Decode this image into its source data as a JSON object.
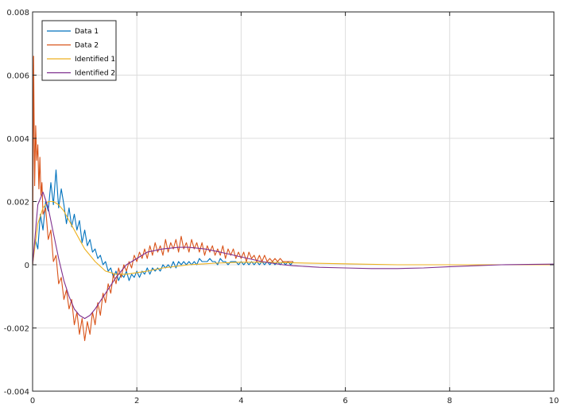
{
  "chart_data": {
    "type": "line",
    "title": "",
    "xlabel": "",
    "ylabel": "",
    "xlim": [
      0,
      10
    ],
    "ylim": [
      -0.004,
      0.008
    ],
    "xticks": [
      0,
      2,
      4,
      6,
      8,
      10
    ],
    "xtick_labels": [
      "0",
      "2",
      "4",
      "6",
      "8",
      "10"
    ],
    "yticks": [
      -0.004,
      -0.002,
      0,
      0.002,
      0.004,
      0.006,
      0.008
    ],
    "ytick_labels": [
      "-0.004",
      "-0.002",
      "0",
      "0.002",
      "0.004",
      "0.006",
      "0.008"
    ],
    "grid": true,
    "legend_position": "top-left",
    "series": [
      {
        "name": "Data 1",
        "color": "#0072BD",
        "x": [
          0,
          0.05,
          0.1,
          0.15,
          0.2,
          0.25,
          0.3,
          0.35,
          0.4,
          0.45,
          0.5,
          0.55,
          0.6,
          0.65,
          0.7,
          0.75,
          0.8,
          0.85,
          0.9,
          0.95,
          1.0,
          1.05,
          1.1,
          1.15,
          1.2,
          1.25,
          1.3,
          1.35,
          1.4,
          1.45,
          1.5,
          1.55,
          1.6,
          1.65,
          1.7,
          1.75,
          1.8,
          1.85,
          1.9,
          1.95,
          2.0,
          2.05,
          2.1,
          2.15,
          2.2,
          2.25,
          2.3,
          2.35,
          2.4,
          2.45,
          2.5,
          2.55,
          2.6,
          2.65,
          2.7,
          2.75,
          2.8,
          2.85,
          2.9,
          2.95,
          3.0,
          3.05,
          3.1,
          3.15,
          3.2,
          3.25,
          3.3,
          3.35,
          3.4,
          3.45,
          3.5,
          3.55,
          3.6,
          3.65,
          3.7,
          3.75,
          3.8,
          3.85,
          3.9,
          3.95,
          4.0,
          4.05,
          4.1,
          4.15,
          4.2,
          4.25,
          4.3,
          4.35,
          4.4,
          4.45,
          4.5,
          4.55,
          4.6,
          4.65,
          4.7,
          4.75,
          4.8,
          4.85,
          4.9,
          4.95,
          5.0
        ],
        "y": [
          0.0,
          0.0008,
          0.0005,
          0.0016,
          0.0011,
          0.002,
          0.0017,
          0.0026,
          0.0019,
          0.003,
          0.0018,
          0.0024,
          0.0019,
          0.0013,
          0.0018,
          0.0012,
          0.0016,
          0.0011,
          0.0014,
          0.0007,
          0.0011,
          0.0006,
          0.0008,
          0.0004,
          0.0005,
          0.0002,
          0.0003,
          0.0,
          0.0001,
          -0.0002,
          -0.0001,
          -0.0004,
          -0.0002,
          -0.0005,
          -0.0003,
          -0.0004,
          -0.0002,
          -0.0005,
          -0.0003,
          -0.0004,
          -0.0002,
          -0.0004,
          -0.0002,
          -0.0003,
          -0.0001,
          -0.0003,
          -0.0001,
          -0.0002,
          -0.0001,
          -0.0002,
          0.0,
          -0.0001,
          0.0,
          -0.0001,
          0.0001,
          -0.0001,
          0.0001,
          0.0,
          0.0001,
          0.0,
          0.0001,
          0.0,
          0.0001,
          0.0,
          0.0002,
          0.0001,
          0.0001,
          0.0001,
          0.0002,
          0.0001,
          0.0001,
          0.0,
          0.0002,
          0.0001,
          0.0001,
          0.0,
          0.0001,
          0.0001,
          0.0001,
          0.0,
          0.0001,
          0.0,
          0.0001,
          0.0,
          0.0001,
          0.0,
          0.0001,
          0.0,
          0.0001,
          0.0,
          0.0001,
          0.0,
          0.0001,
          0.0,
          0.0001,
          0.0,
          0.0001,
          0.0,
          0.0001,
          0.0,
          0.0001
        ]
      },
      {
        "name": "Data 2",
        "color": "#D95319",
        "x": [
          0,
          0.02,
          0.04,
          0.06,
          0.08,
          0.1,
          0.12,
          0.14,
          0.16,
          0.18,
          0.2,
          0.25,
          0.3,
          0.35,
          0.4,
          0.45,
          0.5,
          0.55,
          0.6,
          0.65,
          0.7,
          0.75,
          0.8,
          0.85,
          0.9,
          0.95,
          1.0,
          1.05,
          1.1,
          1.15,
          1.2,
          1.25,
          1.3,
          1.35,
          1.4,
          1.45,
          1.5,
          1.55,
          1.6,
          1.65,
          1.7,
          1.75,
          1.8,
          1.85,
          1.9,
          1.95,
          2.0,
          2.05,
          2.1,
          2.15,
          2.2,
          2.25,
          2.3,
          2.35,
          2.4,
          2.45,
          2.5,
          2.55,
          2.6,
          2.65,
          2.7,
          2.75,
          2.8,
          2.85,
          2.9,
          2.95,
          3.0,
          3.05,
          3.1,
          3.15,
          3.2,
          3.25,
          3.3,
          3.35,
          3.4,
          3.45,
          3.5,
          3.55,
          3.6,
          3.65,
          3.7,
          3.75,
          3.8,
          3.85,
          3.9,
          3.95,
          4.0,
          4.05,
          4.1,
          4.15,
          4.2,
          4.25,
          4.3,
          4.35,
          4.4,
          4.45,
          4.5,
          4.55,
          4.6,
          4.65,
          4.7,
          4.75,
          4.8,
          4.85,
          4.9,
          4.95,
          5.0
        ],
        "y": [
          0.0,
          0.0066,
          0.0025,
          0.0044,
          0.0033,
          0.0038,
          0.0024,
          0.0034,
          0.0022,
          0.0026,
          0.0016,
          0.0018,
          0.0008,
          0.0011,
          0.0001,
          0.0003,
          -0.0006,
          -0.0004,
          -0.0011,
          -0.0008,
          -0.0014,
          -0.0011,
          -0.0019,
          -0.0015,
          -0.0022,
          -0.0017,
          -0.0024,
          -0.0018,
          -0.0022,
          -0.0015,
          -0.0019,
          -0.0012,
          -0.0016,
          -0.0009,
          -0.0012,
          -0.0006,
          -0.0009,
          -0.0003,
          -0.0006,
          -0.0001,
          -0.0004,
          0.0,
          -0.0002,
          0.0001,
          -0.0001,
          0.0003,
          0.0001,
          0.0004,
          0.0002,
          0.0005,
          0.0002,
          0.0006,
          0.0003,
          0.0007,
          0.0004,
          0.0006,
          0.0003,
          0.0008,
          0.0004,
          0.0007,
          0.0005,
          0.0008,
          0.0004,
          0.0009,
          0.0005,
          0.0007,
          0.0004,
          0.0008,
          0.0005,
          0.0007,
          0.0004,
          0.0007,
          0.0003,
          0.0006,
          0.0004,
          0.0006,
          0.0003,
          0.0005,
          0.0003,
          0.0006,
          0.0002,
          0.0005,
          0.0003,
          0.0005,
          0.0002,
          0.0004,
          0.0002,
          0.0004,
          0.0001,
          0.0004,
          0.0002,
          0.0003,
          0.0001,
          0.0003,
          0.0001,
          0.0003,
          0.0001,
          0.0002,
          0.0001,
          0.0002,
          0.0001,
          0.0002,
          0.0001,
          0.0001,
          0.0001,
          0.0001,
          0.0001
        ]
      },
      {
        "name": "Identified 1",
        "color": "#EDB120",
        "x": [
          0,
          0.1,
          0.2,
          0.3,
          0.4,
          0.5,
          0.6,
          0.7,
          0.8,
          0.9,
          1.0,
          1.2,
          1.4,
          1.6,
          1.8,
          2.0,
          2.2,
          2.5,
          3.0,
          3.5,
          4.0,
          4.5,
          5.0,
          6.0,
          7.0,
          8.0,
          9.0,
          10.0
        ],
        "y": [
          0.0,
          0.0013,
          0.0018,
          0.002,
          0.002,
          0.0019,
          0.0017,
          0.0014,
          0.0011,
          0.0008,
          0.0005,
          0.0001,
          -0.0002,
          -0.0003,
          -0.0003,
          -0.00025,
          -0.0002,
          -0.0001,
          0.0,
          5e-05,
          8e-05,
          8e-05,
          6e-05,
          3e-05,
          0.0,
          0.0,
          0.0,
          0.0
        ]
      },
      {
        "name": "Identified 2",
        "color": "#7E2F8E",
        "x": [
          0,
          0.1,
          0.2,
          0.3,
          0.4,
          0.5,
          0.6,
          0.7,
          0.8,
          0.9,
          1.0,
          1.1,
          1.2,
          1.4,
          1.6,
          1.8,
          2.0,
          2.2,
          2.5,
          2.8,
          3.0,
          3.3,
          3.6,
          4.0,
          4.4,
          4.8,
          5.0,
          5.5,
          6.0,
          6.5,
          7.0,
          7.5,
          8.0,
          8.5,
          9.0,
          9.5,
          10.0
        ],
        "y": [
          0.0,
          0.0019,
          0.0023,
          0.0018,
          0.001,
          0.0002,
          -0.0005,
          -0.001,
          -0.0014,
          -0.0016,
          -0.0017,
          -0.0016,
          -0.0014,
          -0.0009,
          -0.0004,
          0.0,
          0.0002,
          0.0004,
          0.0005,
          0.00055,
          0.00055,
          0.0005,
          0.0004,
          0.00025,
          0.0001,
          0.0,
          -3e-05,
          -8e-05,
          -0.0001,
          -0.00012,
          -0.00012,
          -0.0001,
          -6e-05,
          -3e-05,
          0.0,
          1e-05,
          2e-05
        ]
      }
    ]
  }
}
